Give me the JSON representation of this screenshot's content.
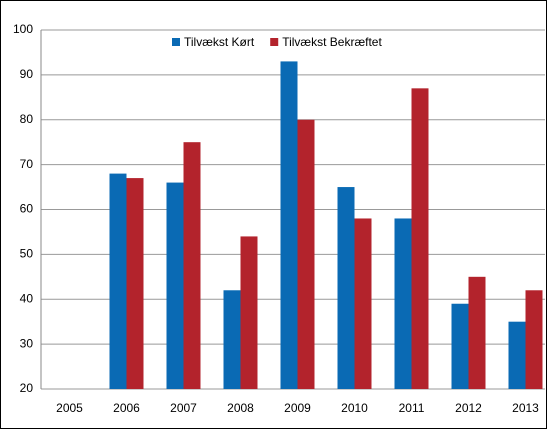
{
  "chart_data": {
    "type": "bar",
    "categories": [
      "2005",
      "2006",
      "2007",
      "2008",
      "2009",
      "2010",
      "2011",
      "2012",
      "2013"
    ],
    "series": [
      {
        "name": "Tilvækst Kørt",
        "color": "#0a6ab4",
        "values": [
          null,
          68,
          66,
          42,
          93,
          65,
          58,
          39,
          35
        ]
      },
      {
        "name": "Tilvækst Bekræftet",
        "color": "#b3232c",
        "values": [
          null,
          67,
          75,
          54,
          80,
          58,
          87,
          45,
          42
        ]
      }
    ],
    "ylim": [
      20,
      100
    ],
    "yticks": [
      20,
      30,
      40,
      50,
      60,
      70,
      80,
      90,
      100
    ],
    "grid": true,
    "legend": "top"
  }
}
